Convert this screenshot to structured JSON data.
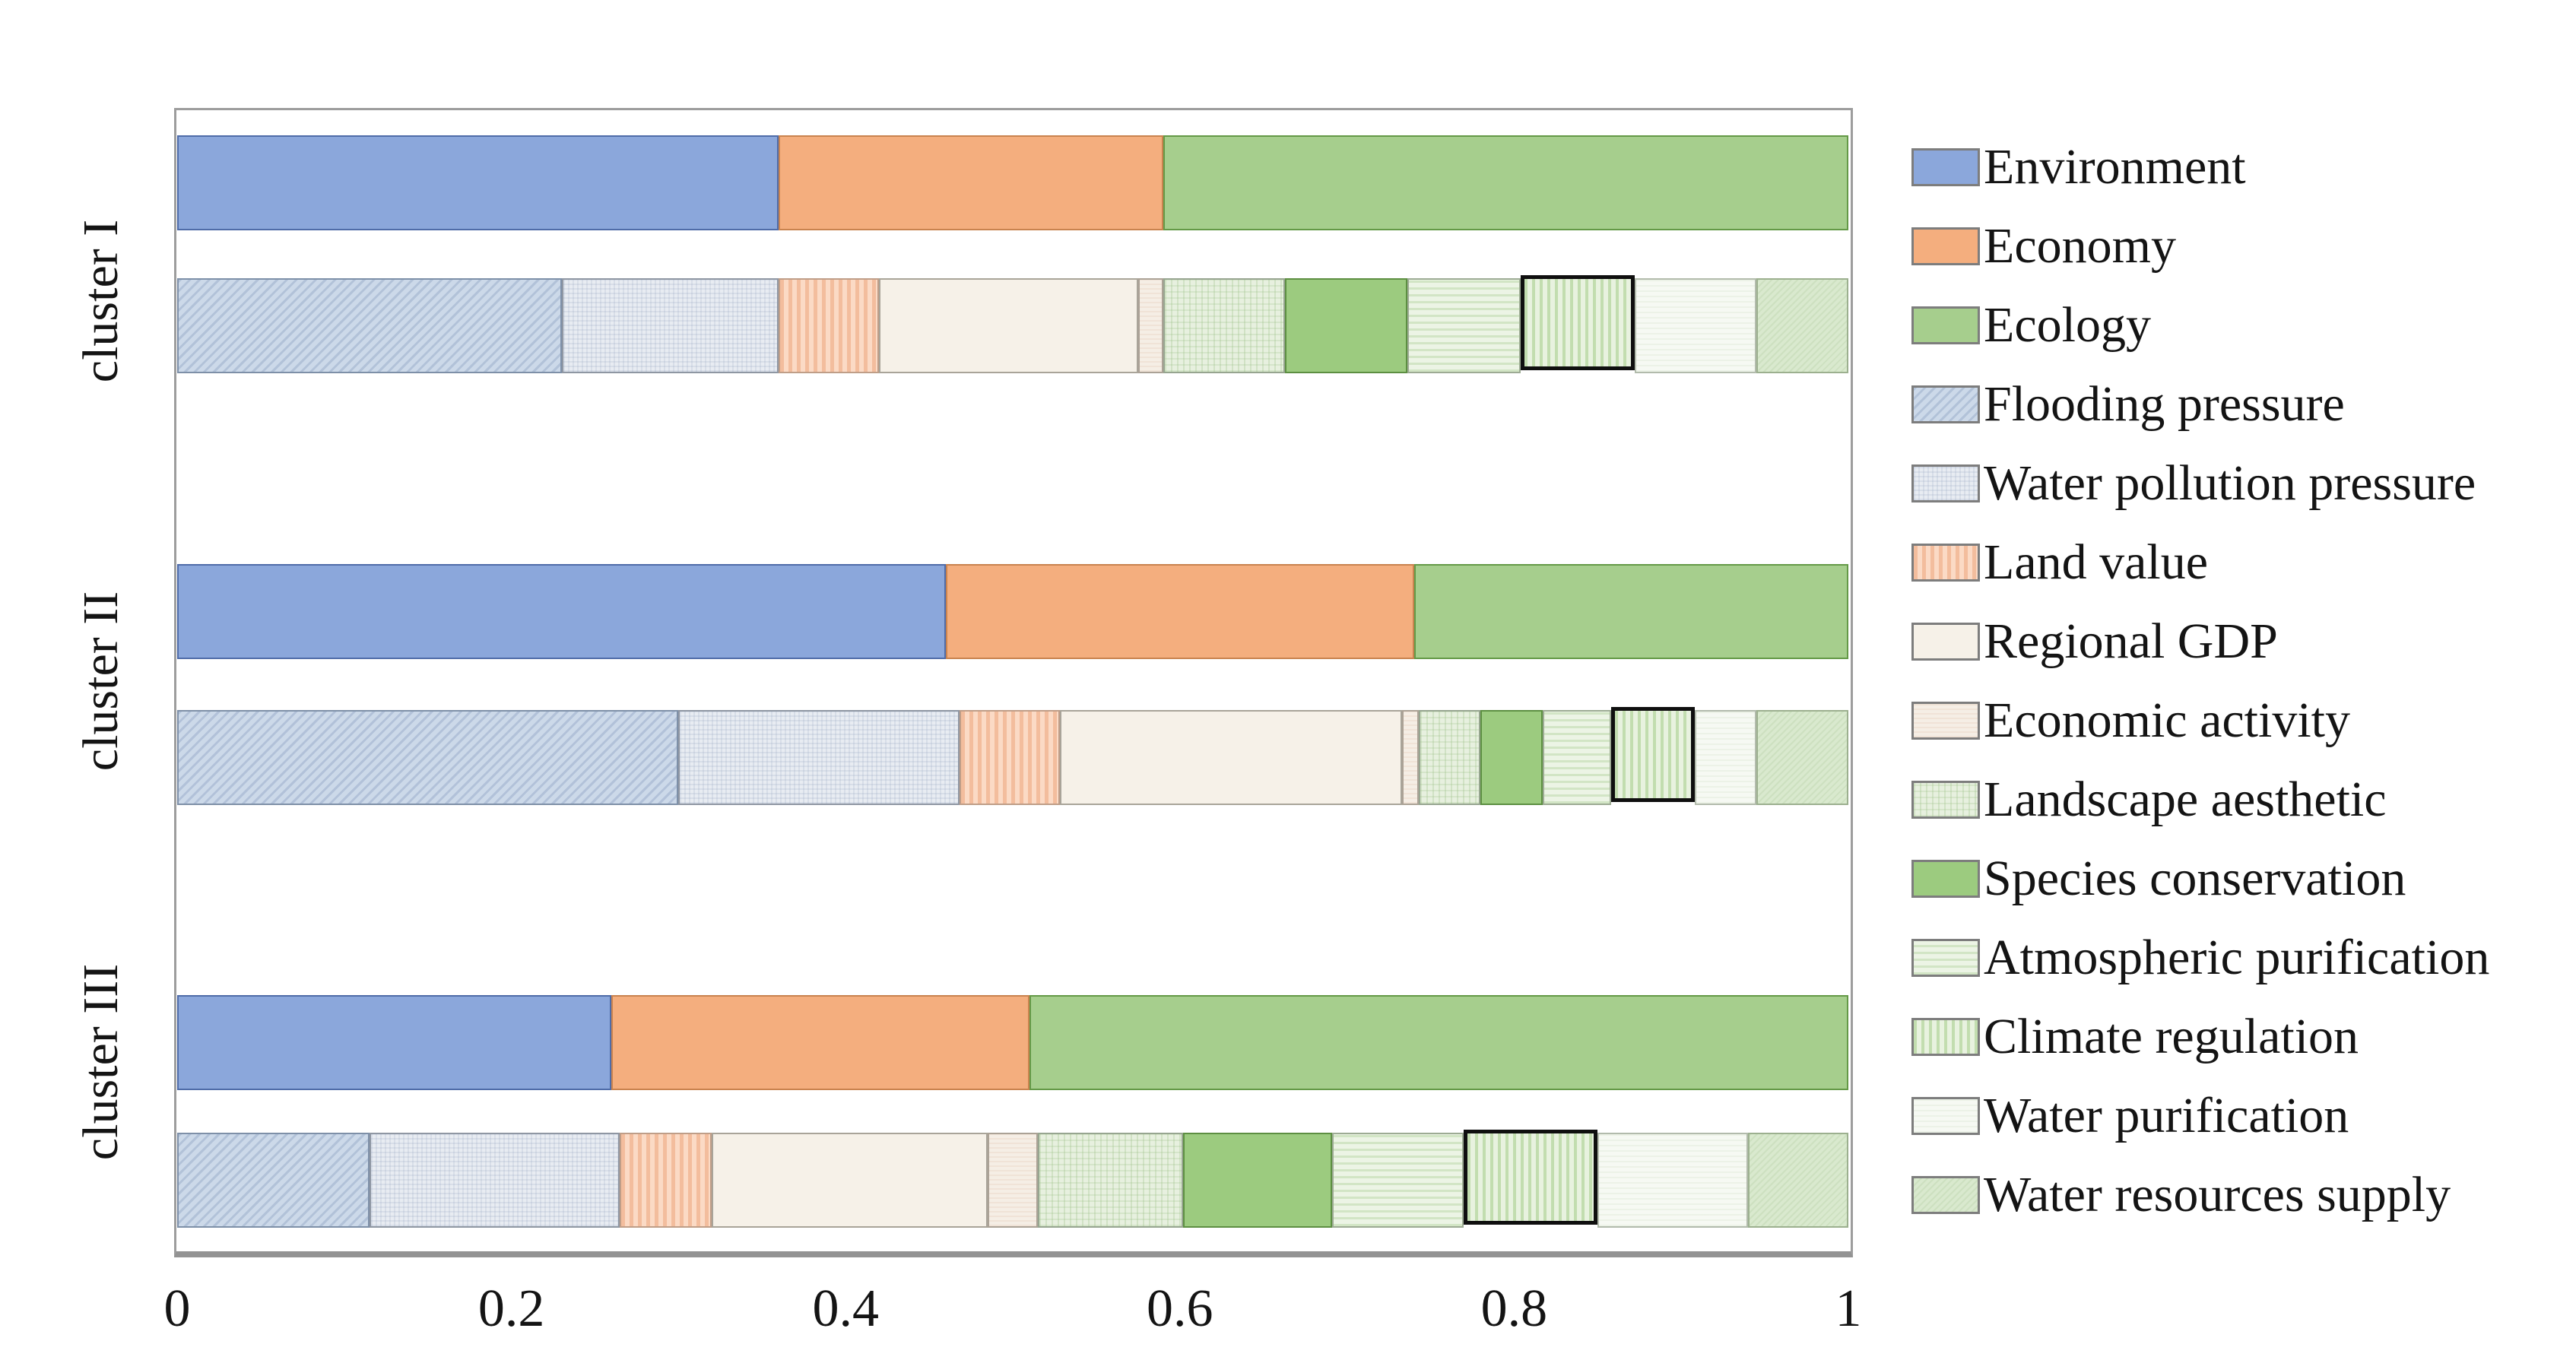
{
  "figure": {
    "background": "#ffffff",
    "description": "Horizontal stacked bar chart: criteria weights for three clusters; each cluster has a main bar (Environment/Economy/Ecology) and a detail bar of 11 sub-criteria. The Climate regulation segment is outlined in black in each detail bar."
  },
  "axes": {
    "x_ticks": [
      "0",
      "0.2",
      "0.4",
      "0.6",
      "0.8",
      "1"
    ],
    "x_tick_values": [
      0,
      0.2,
      0.4,
      0.6,
      0.8,
      1
    ],
    "xlim": [
      0,
      1
    ],
    "y_labels": [
      "cluster I",
      "cluster II",
      "cluster III"
    ]
  },
  "legend": {
    "position": "right",
    "items": [
      {
        "key": "environment",
        "label": "Environment"
      },
      {
        "key": "economy",
        "label": "Economy"
      },
      {
        "key": "ecology",
        "label": "Ecology"
      },
      {
        "key": "flooding_pressure",
        "label": "Flooding pressure"
      },
      {
        "key": "water_pollution_pressure",
        "label": "Water pollution pressure"
      },
      {
        "key": "land_value",
        "label": "Land value"
      },
      {
        "key": "regional_gdp",
        "label": "Regional GDP"
      },
      {
        "key": "economic_activity",
        "label": "Economic activity"
      },
      {
        "key": "landscape_aesthetic",
        "label": "Landscape aesthetic"
      },
      {
        "key": "species_conservation",
        "label": "Species conservation"
      },
      {
        "key": "atmospheric_purification",
        "label": "Atmospheric purification"
      },
      {
        "key": "climate_regulation",
        "label": "Climate regulation"
      },
      {
        "key": "water_purification",
        "label": "Water purification"
      },
      {
        "key": "water_resources_supply",
        "label": "Water resources supply"
      }
    ]
  },
  "colors": {
    "environment": "#8ba7db",
    "economy": "#f4ae7e",
    "ecology": "#a6ce8d",
    "flooding_pressure": "#ccd9e9",
    "water_pollution_pressure": "#e8ecf2",
    "land_value": "#fbdac5",
    "regional_gdp": "#f6f1e8",
    "economic_activity": "#f5eee5",
    "landscape_aesthetic": "#e7f0df",
    "species_conservation": "#9ccb7f",
    "atmospheric_purification": "#ecf4e5",
    "climate_regulation": "#e8f2df",
    "water_purification": "#f6f9f3",
    "water_resources_supply": "#d9e9ce",
    "highlight_outline": "#0f0f0f"
  },
  "chart_data": {
    "type": "bar",
    "orientation": "horizontal",
    "stacked": true,
    "grid": false,
    "title": "",
    "xlabel": "",
    "ylabel": "",
    "xlim": [
      0,
      1
    ],
    "categories": [
      "cluster I",
      "cluster II",
      "cluster III"
    ],
    "main_series_keys": [
      "environment",
      "economy",
      "ecology"
    ],
    "detail_series_keys": [
      "flooding_pressure",
      "water_pollution_pressure",
      "land_value",
      "regional_gdp",
      "economic_activity",
      "landscape_aesthetic",
      "species_conservation",
      "atmospheric_purification",
      "climate_regulation",
      "water_purification",
      "water_resources_supply"
    ],
    "clusters": [
      {
        "name": "cluster I",
        "main": [
          0.36,
          0.23,
          0.41
        ],
        "detail": [
          0.23,
          0.13,
          0.06,
          0.155,
          0.015,
          0.073,
          0.073,
          0.068,
          0.068,
          0.073,
          0.055
        ]
      },
      {
        "name": "cluster II",
        "main": [
          0.46,
          0.28,
          0.26
        ],
        "detail": [
          0.3,
          0.168,
          0.06,
          0.205,
          0.01,
          0.037,
          0.037,
          0.041,
          0.05,
          0.037,
          0.055
        ]
      },
      {
        "name": "cluster III",
        "main": [
          0.26,
          0.25,
          0.49
        ],
        "detail": [
          0.115,
          0.15,
          0.055,
          0.165,
          0.03,
          0.087,
          0.089,
          0.079,
          0.08,
          0.09,
          0.06
        ]
      }
    ],
    "highlight": {
      "series": "climate_regulation",
      "style": "black-outline"
    }
  }
}
